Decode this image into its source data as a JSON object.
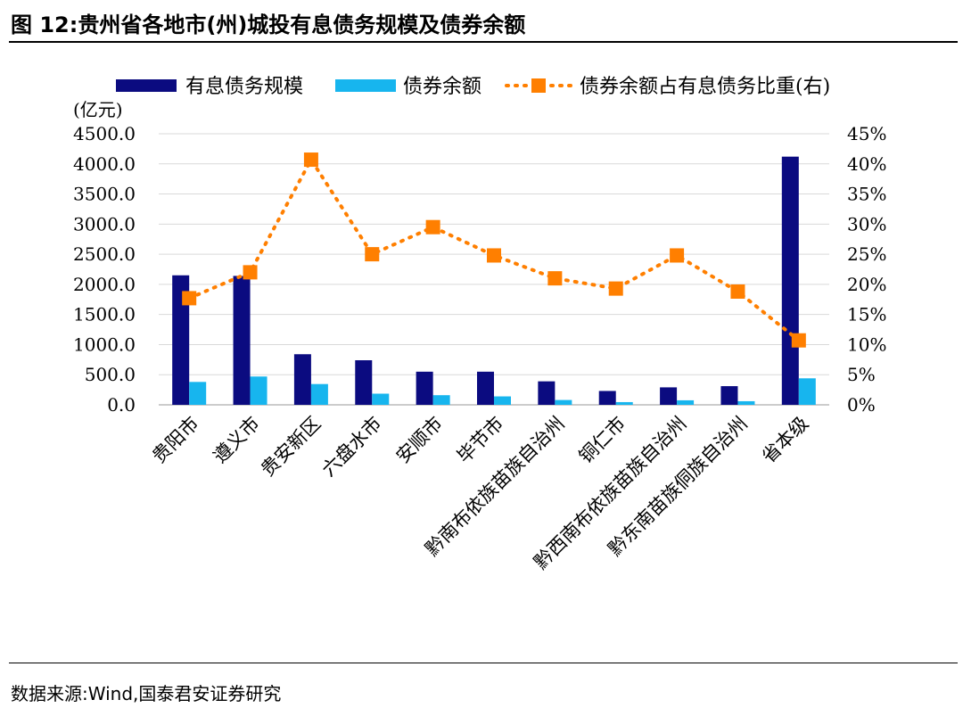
{
  "figure_title": "图 12:贵州省各地市(州)城投有息债务规模及债券余额",
  "source": {
    "label": "数据来源:",
    "text": "Wind,国泰君安证券研究"
  },
  "chart_data": {
    "type": "bar",
    "title": "图 12:贵州省各地市(州)城投有息债务规模及债券余额",
    "ylabel_left": "(亿元)",
    "categories": [
      "贵阳市",
      "遵义市",
      "贵安新区",
      "六盘水市",
      "安顺市",
      "毕节市",
      "黔南布依族苗族自治州",
      "铜仁市",
      "黔西南布依族苗族自治州",
      "黔东南苗族侗族自治州",
      "省本级"
    ],
    "series": [
      {
        "name": "有息债务规模",
        "type": "bar",
        "axis": "left",
        "color": "#0b0b80",
        "values": [
          2150,
          2140,
          840,
          740,
          550,
          550,
          390,
          230,
          290,
          310,
          4120
        ]
      },
      {
        "name": "债券余额",
        "type": "bar",
        "axis": "left",
        "color": "#17b5ee",
        "values": [
          380,
          470,
          345,
          185,
          160,
          140,
          80,
          45,
          75,
          60,
          440
        ]
      },
      {
        "name": "债券余额占有息债务比重(右)",
        "type": "line",
        "axis": "right",
        "color": "#ff7f00",
        "values": [
          17.7,
          22.0,
          40.7,
          25.0,
          29.5,
          24.8,
          21.0,
          19.3,
          24.8,
          18.8,
          10.7
        ]
      }
    ],
    "left_axis": {
      "ylim": [
        0,
        4500
      ],
      "ticks": [
        "0.0",
        "500.0",
        "1000.0",
        "1500.0",
        "2000.0",
        "2500.0",
        "3000.0",
        "3500.0",
        "4000.0",
        "4500.0"
      ]
    },
    "right_axis": {
      "ylim": [
        0,
        45
      ],
      "ticks": [
        "0%",
        "5%",
        "10%",
        "15%",
        "20%",
        "25%",
        "30%",
        "35%",
        "40%",
        "45%"
      ]
    },
    "grid": true,
    "legend": "top"
  }
}
